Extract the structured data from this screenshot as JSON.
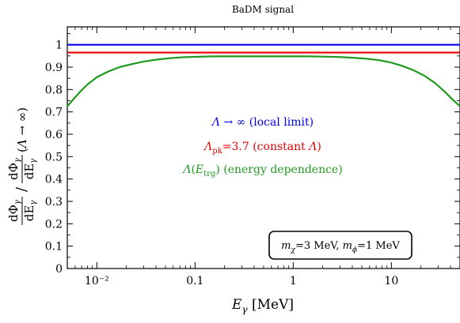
{
  "chart_data": {
    "type": "line",
    "title": "BaDM signal",
    "xlabel": "Eγ [MeV]",
    "ylabel": "dΦγ/dEγ / dΦγ/dEγ(Λ → ∞)",
    "xscale": "log",
    "xlim": [
      0.005,
      50
    ],
    "ylim": [
      0,
      1.08
    ],
    "xticks": [
      {
        "value": 0.01,
        "label": "10⁻²"
      },
      {
        "value": 0.1,
        "label": "0.1"
      },
      {
        "value": 1,
        "label": "1"
      },
      {
        "value": 10,
        "label": "10"
      }
    ],
    "yticks": [
      {
        "value": 0,
        "label": "0"
      },
      {
        "value": 0.1,
        "label": "0.1"
      },
      {
        "value": 0.2,
        "label": "0.2"
      },
      {
        "value": 0.3,
        "label": "0.3"
      },
      {
        "value": 0.4,
        "label": "0.4"
      },
      {
        "value": 0.5,
        "label": "0.5"
      },
      {
        "value": 0.6,
        "label": "0.6"
      },
      {
        "value": 0.7,
        "label": "0.7"
      },
      {
        "value": 0.8,
        "label": "0.8"
      },
      {
        "value": 0.9,
        "label": "0.9"
      },
      {
        "value": 1,
        "label": "1"
      }
    ],
    "grid": false,
    "series": [
      {
        "name": "Λ → ∞ (local limit)",
        "color": "#0000e6",
        "x": [
          0.005,
          50
        ],
        "y": [
          1.0,
          1.0
        ]
      },
      {
        "name": "Λpk=3.7 (constant Λ)",
        "color": "#e60000",
        "x": [
          0.005,
          50
        ],
        "y": [
          0.965,
          0.965
        ]
      },
      {
        "name": "Λ(Etrg) (energy dependence)",
        "color": "#1f9a1f",
        "x": [
          0.005,
          0.006,
          0.007,
          0.008,
          0.01,
          0.013,
          0.017,
          0.022,
          0.03,
          0.04,
          0.055,
          0.075,
          0.1,
          0.15,
          0.3,
          0.6,
          1.0,
          1.5,
          2.0,
          3.0,
          4.0,
          5.5,
          7.5,
          10,
          13,
          17,
          22,
          28,
          35,
          42,
          50
        ],
        "y": [
          0.725,
          0.765,
          0.797,
          0.822,
          0.855,
          0.88,
          0.9,
          0.912,
          0.925,
          0.933,
          0.94,
          0.944,
          0.946,
          0.948,
          0.948,
          0.948,
          0.948,
          0.948,
          0.947,
          0.945,
          0.942,
          0.938,
          0.931,
          0.92,
          0.905,
          0.885,
          0.86,
          0.828,
          0.79,
          0.755,
          0.725
        ]
      }
    ],
    "legend": {
      "placement": "center",
      "entries": [
        {
          "text": "Λ → ∞ (local limit)",
          "color": "#0000e6"
        },
        {
          "text": "Λpk=3.7 (constant Λ)",
          "color": "#e60000"
        },
        {
          "text": "Λ(Etrg) (energy dependence)",
          "color": "#1f9a1f"
        }
      ]
    },
    "annotation": "mχ=3 MeV, mϕ=1 MeV"
  }
}
